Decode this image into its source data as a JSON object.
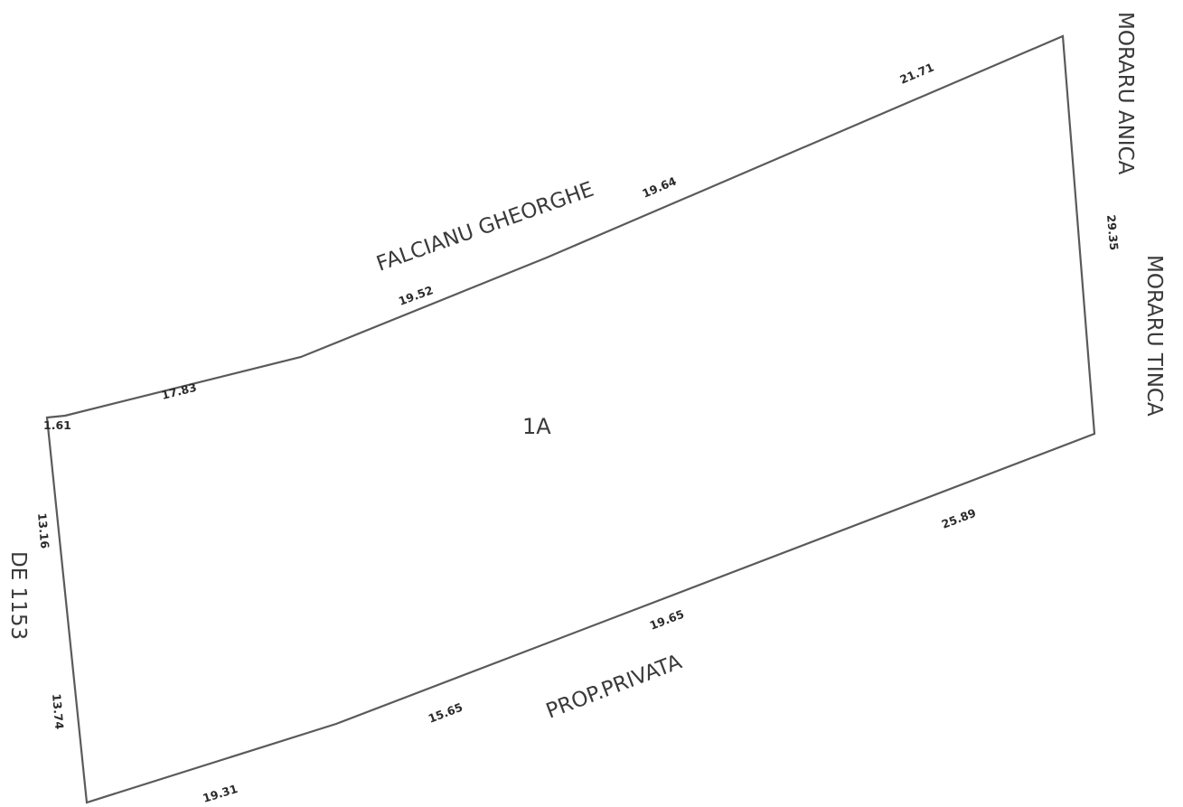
{
  "colors": {
    "outline": "#5a5a5a",
    "text": "#3a3a3a",
    "dimension_text": "#2b2b2b",
    "background": "#ffffff"
  },
  "parcel": {
    "id": "1A"
  },
  "neighbors": {
    "north": "FALCIANU GHEORGHE",
    "east_upper": "MORARU ANICA",
    "east_lower": "MORARU TINCA",
    "south": "PROP.PRIVATA",
    "west": "DE 1153"
  },
  "dimensions": {
    "north_1": "1.61",
    "north_2": "17.83",
    "north_3": "19.52",
    "north_4": "19.64",
    "north_5": "21.71",
    "east": "29.35",
    "south_1": "25.89",
    "south_2": "19.65",
    "south_3": "15.65",
    "south_4": "19.31",
    "west_1": "13.16",
    "west_2": "13.74"
  }
}
